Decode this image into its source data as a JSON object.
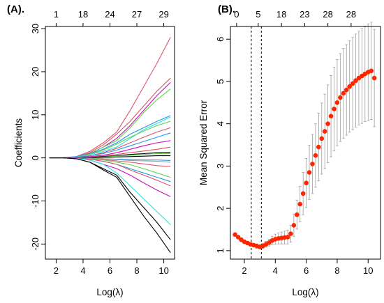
{
  "chart_data": [
    {
      "type": "line",
      "panel_label": "(A).",
      "xlabel": "Log(λ)",
      "ylabel": "Coefficients",
      "xlim": [
        1.2,
        10.8
      ],
      "ylim": [
        -23.5,
        30.5
      ],
      "x_ticks": [
        2,
        4,
        6,
        8,
        10
      ],
      "y_ticks": [
        -20,
        -10,
        0,
        10,
        20,
        30
      ],
      "top_axis": {
        "positions": [
          2.0,
          4.0,
          6.0,
          8.0,
          10.0
        ],
        "labels": [
          "1",
          "18",
          "24",
          "27",
          "29"
        ]
      },
      "x": [
        1.5,
        2.5,
        3.5,
        4.5,
        5.5,
        6.5,
        7.5,
        8.5,
        9.5,
        10.5
      ],
      "series": [
        {
          "color": "#df536b",
          "values": [
            0,
            0,
            0.3,
            1.5,
            3.5,
            6.0,
            11.0,
            16.5,
            22.0,
            28.0
          ]
        },
        {
          "color": "#df536b",
          "values": [
            0,
            0,
            0.2,
            1.2,
            3.0,
            5.5,
            8.5,
            12.0,
            15.5,
            18.5
          ]
        },
        {
          "color": "#cd0bbc",
          "values": [
            0,
            0,
            0.2,
            1.0,
            2.5,
            4.5,
            7.5,
            11.0,
            14.5,
            17.5
          ]
        },
        {
          "color": "#61d04f",
          "values": [
            0,
            0,
            0.2,
            1.0,
            2.5,
            4.0,
            7.0,
            10.5,
            13.5,
            16.0
          ]
        },
        {
          "color": "#2297e6",
          "values": [
            0,
            0,
            0.3,
            1.0,
            2.0,
            3.5,
            5.5,
            7.0,
            8.5,
            9.8
          ]
        },
        {
          "color": "#28e2e5",
          "values": [
            0,
            0,
            0.2,
            0.8,
            1.5,
            2.5,
            4.5,
            6.5,
            8.0,
            9.5
          ]
        },
        {
          "color": "#61d04f",
          "values": [
            0,
            0,
            0.1,
            0.8,
            1.8,
            3.2,
            4.8,
            6.2,
            7.5,
            8.5
          ]
        },
        {
          "color": "#df536b",
          "values": [
            0,
            0,
            0.1,
            0.5,
            1.2,
            2.2,
            3.5,
            4.8,
            6.0,
            7.0
          ]
        },
        {
          "color": "#2297e6",
          "values": [
            0,
            0,
            0.1,
            0.5,
            1.0,
            1.8,
            2.8,
            3.8,
            4.8,
            5.8
          ]
        },
        {
          "color": "#cd0bbc",
          "values": [
            0,
            0,
            0.1,
            0.3,
            0.6,
            1.2,
            2.0,
            2.8,
            3.5,
            4.0
          ]
        },
        {
          "color": "#df536b",
          "values": [
            0,
            0,
            0,
            0.2,
            0.4,
            0.8,
            1.2,
            1.6,
            2.0,
            2.5
          ]
        },
        {
          "color": "#000000",
          "values": [
            0,
            0,
            0,
            0.1,
            0.3,
            0.5,
            0.8,
            1.0,
            1.2,
            1.3
          ]
        },
        {
          "color": "#61d04f",
          "values": [
            0,
            0,
            0,
            0.1,
            0.2,
            0.4,
            0.6,
            0.8,
            1.0,
            1.0
          ]
        },
        {
          "color": "#000000",
          "values": [
            0,
            0,
            0,
            0,
            0.1,
            0.2,
            0.3,
            0.4,
            0.5,
            0.5
          ]
        },
        {
          "color": "#2297e6",
          "values": [
            0,
            0,
            0,
            -0.1,
            -0.2,
            -0.3,
            -0.4,
            -0.5,
            -0.5,
            -0.6
          ]
        },
        {
          "color": "#9e9e9e",
          "values": [
            0,
            0,
            0,
            -0.1,
            -0.2,
            -0.4,
            -0.6,
            -0.7,
            -0.8,
            -1.0
          ]
        },
        {
          "color": "#df536b",
          "values": [
            0,
            0,
            0,
            -0.2,
            -0.4,
            -0.7,
            -1.0,
            -1.4,
            -1.8,
            -2.0
          ]
        },
        {
          "color": "#61d04f",
          "values": [
            0,
            0,
            0,
            -0.2,
            -0.5,
            -1.0,
            -1.6,
            -2.5,
            -3.5,
            -4.5
          ]
        },
        {
          "color": "#2297e6",
          "values": [
            0,
            0,
            0,
            -0.3,
            -0.8,
            -1.5,
            -2.5,
            -3.5,
            -4.5,
            -5.5
          ]
        },
        {
          "color": "#df536b",
          "values": [
            0,
            0,
            0,
            -0.3,
            -0.8,
            -1.5,
            -2.8,
            -4.0,
            -5.2,
            -6.5
          ]
        },
        {
          "color": "#cd0bbc",
          "values": [
            0,
            0,
            0,
            -0.5,
            -1.5,
            -2.5,
            -4.0,
            -5.8,
            -7.5,
            -9.0
          ]
        },
        {
          "color": "#28e2e5",
          "values": [
            0,
            0,
            -0.1,
            -0.5,
            -1.5,
            -3.5,
            -6.5,
            -9.5,
            -12.5,
            -15.5
          ]
        },
        {
          "color": "#000000",
          "values": [
            0,
            0,
            -0.2,
            -1.0,
            -2.5,
            -4.0,
            -8.0,
            -11.5,
            -15.0,
            -19.0
          ]
        },
        {
          "color": "#000000",
          "values": [
            0,
            0,
            -0.2,
            -1.0,
            -2.8,
            -4.5,
            -9.0,
            -13.5,
            -17.5,
            -22.0
          ]
        }
      ]
    },
    {
      "type": "line",
      "panel_label": "(B).",
      "xlabel": "Log(λ)",
      "ylabel": "Mean Squared Error",
      "xlim": [
        1.1,
        10.8
      ],
      "ylim": [
        0.8,
        6.3
      ],
      "x_ticks": [
        2,
        4,
        6,
        8,
        10
      ],
      "y_ticks": [
        1,
        2,
        3,
        4,
        5,
        6
      ],
      "top_axis": {
        "positions": [
          1.5,
          2.9,
          4.4,
          5.9,
          7.4,
          8.9
        ],
        "labels": [
          "0",
          "5",
          "18",
          "23",
          "28",
          "28"
        ]
      },
      "vlines": [
        2.45,
        3.1
      ],
      "point_color": "#ff2500",
      "error_bar_color": "#9e9e9e",
      "x": [
        1.4,
        1.6,
        1.8,
        2.0,
        2.2,
        2.4,
        2.6,
        2.8,
        3.0,
        3.2,
        3.4,
        3.6,
        3.8,
        4.0,
        4.2,
        4.4,
        4.6,
        4.8,
        5.0,
        5.2,
        5.4,
        5.6,
        5.8,
        6.0,
        6.2,
        6.4,
        6.6,
        6.8,
        7.0,
        7.2,
        7.4,
        7.6,
        7.8,
        8.0,
        8.2,
        8.4,
        8.6,
        8.8,
        9.0,
        9.2,
        9.4,
        9.6,
        9.8,
        10.0,
        10.2,
        10.4
      ],
      "mse": [
        1.38,
        1.32,
        1.26,
        1.21,
        1.18,
        1.15,
        1.13,
        1.11,
        1.09,
        1.11,
        1.15,
        1.19,
        1.24,
        1.27,
        1.29,
        1.3,
        1.31,
        1.32,
        1.4,
        1.6,
        1.85,
        2.1,
        2.35,
        2.6,
        2.85,
        3.05,
        3.25,
        3.45,
        3.65,
        3.82,
        4.0,
        4.18,
        4.35,
        4.5,
        4.62,
        4.72,
        4.8,
        4.88,
        4.95,
        5.02,
        5.08,
        5.13,
        5.18,
        5.22,
        5.25,
        5.08
      ],
      "se": [
        0.04,
        0.04,
        0.04,
        0.04,
        0.04,
        0.04,
        0.04,
        0.05,
        0.05,
        0.06,
        0.07,
        0.08,
        0.1,
        0.12,
        0.13,
        0.14,
        0.15,
        0.16,
        0.2,
        0.26,
        0.34,
        0.42,
        0.5,
        0.58,
        0.64,
        0.7,
        0.75,
        0.8,
        0.84,
        0.88,
        0.92,
        0.96,
        0.99,
        1.02,
        1.04,
        1.06,
        1.07,
        1.08,
        1.09,
        1.1,
        1.11,
        1.12,
        1.13,
        1.14,
        1.15,
        1.15
      ]
    }
  ]
}
